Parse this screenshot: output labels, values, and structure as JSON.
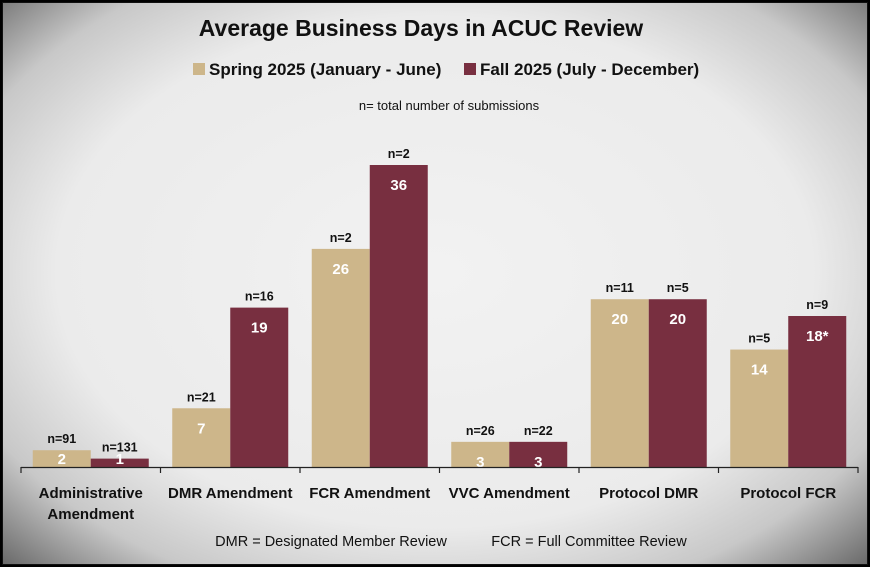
{
  "chart_data": {
    "type": "bar",
    "title": "Average Business Days in ACUC Review",
    "subtitle": "n= total number of submissions",
    "categories": [
      [
        "Administrative",
        "Amendment"
      ],
      [
        "DMR Amendment"
      ],
      [
        "FCR Amendment"
      ],
      [
        "VVC Amendment"
      ],
      [
        "Protocol DMR"
      ],
      [
        "Protocol FCR"
      ]
    ],
    "series": [
      {
        "name": "Spring 2025 (January - June)",
        "color": "#CDB68A",
        "values": [
          2,
          7,
          26,
          3,
          20,
          14
        ],
        "value_labels": [
          "2",
          "7",
          "26",
          "3",
          "20",
          "14"
        ],
        "n_labels": [
          "n=91",
          "n=21",
          "n=2",
          "n=26",
          "n=11",
          "n=5"
        ]
      },
      {
        "name": "Fall 2025 (July - December)",
        "color": "#782F40",
        "values": [
          1,
          19,
          36,
          3,
          20,
          18
        ],
        "value_labels": [
          "1",
          "19",
          "36",
          "3",
          "20",
          "18*"
        ],
        "n_labels": [
          "n=131",
          "n=16",
          "n=2",
          "n=22",
          "n=5",
          "n=9"
        ]
      }
    ],
    "ylim": [
      0,
      36
    ],
    "grid": false,
    "legend": "top-center",
    "footnotes": [
      "DMR = Designated Member Review",
      "FCR = Full Committee Review"
    ]
  }
}
